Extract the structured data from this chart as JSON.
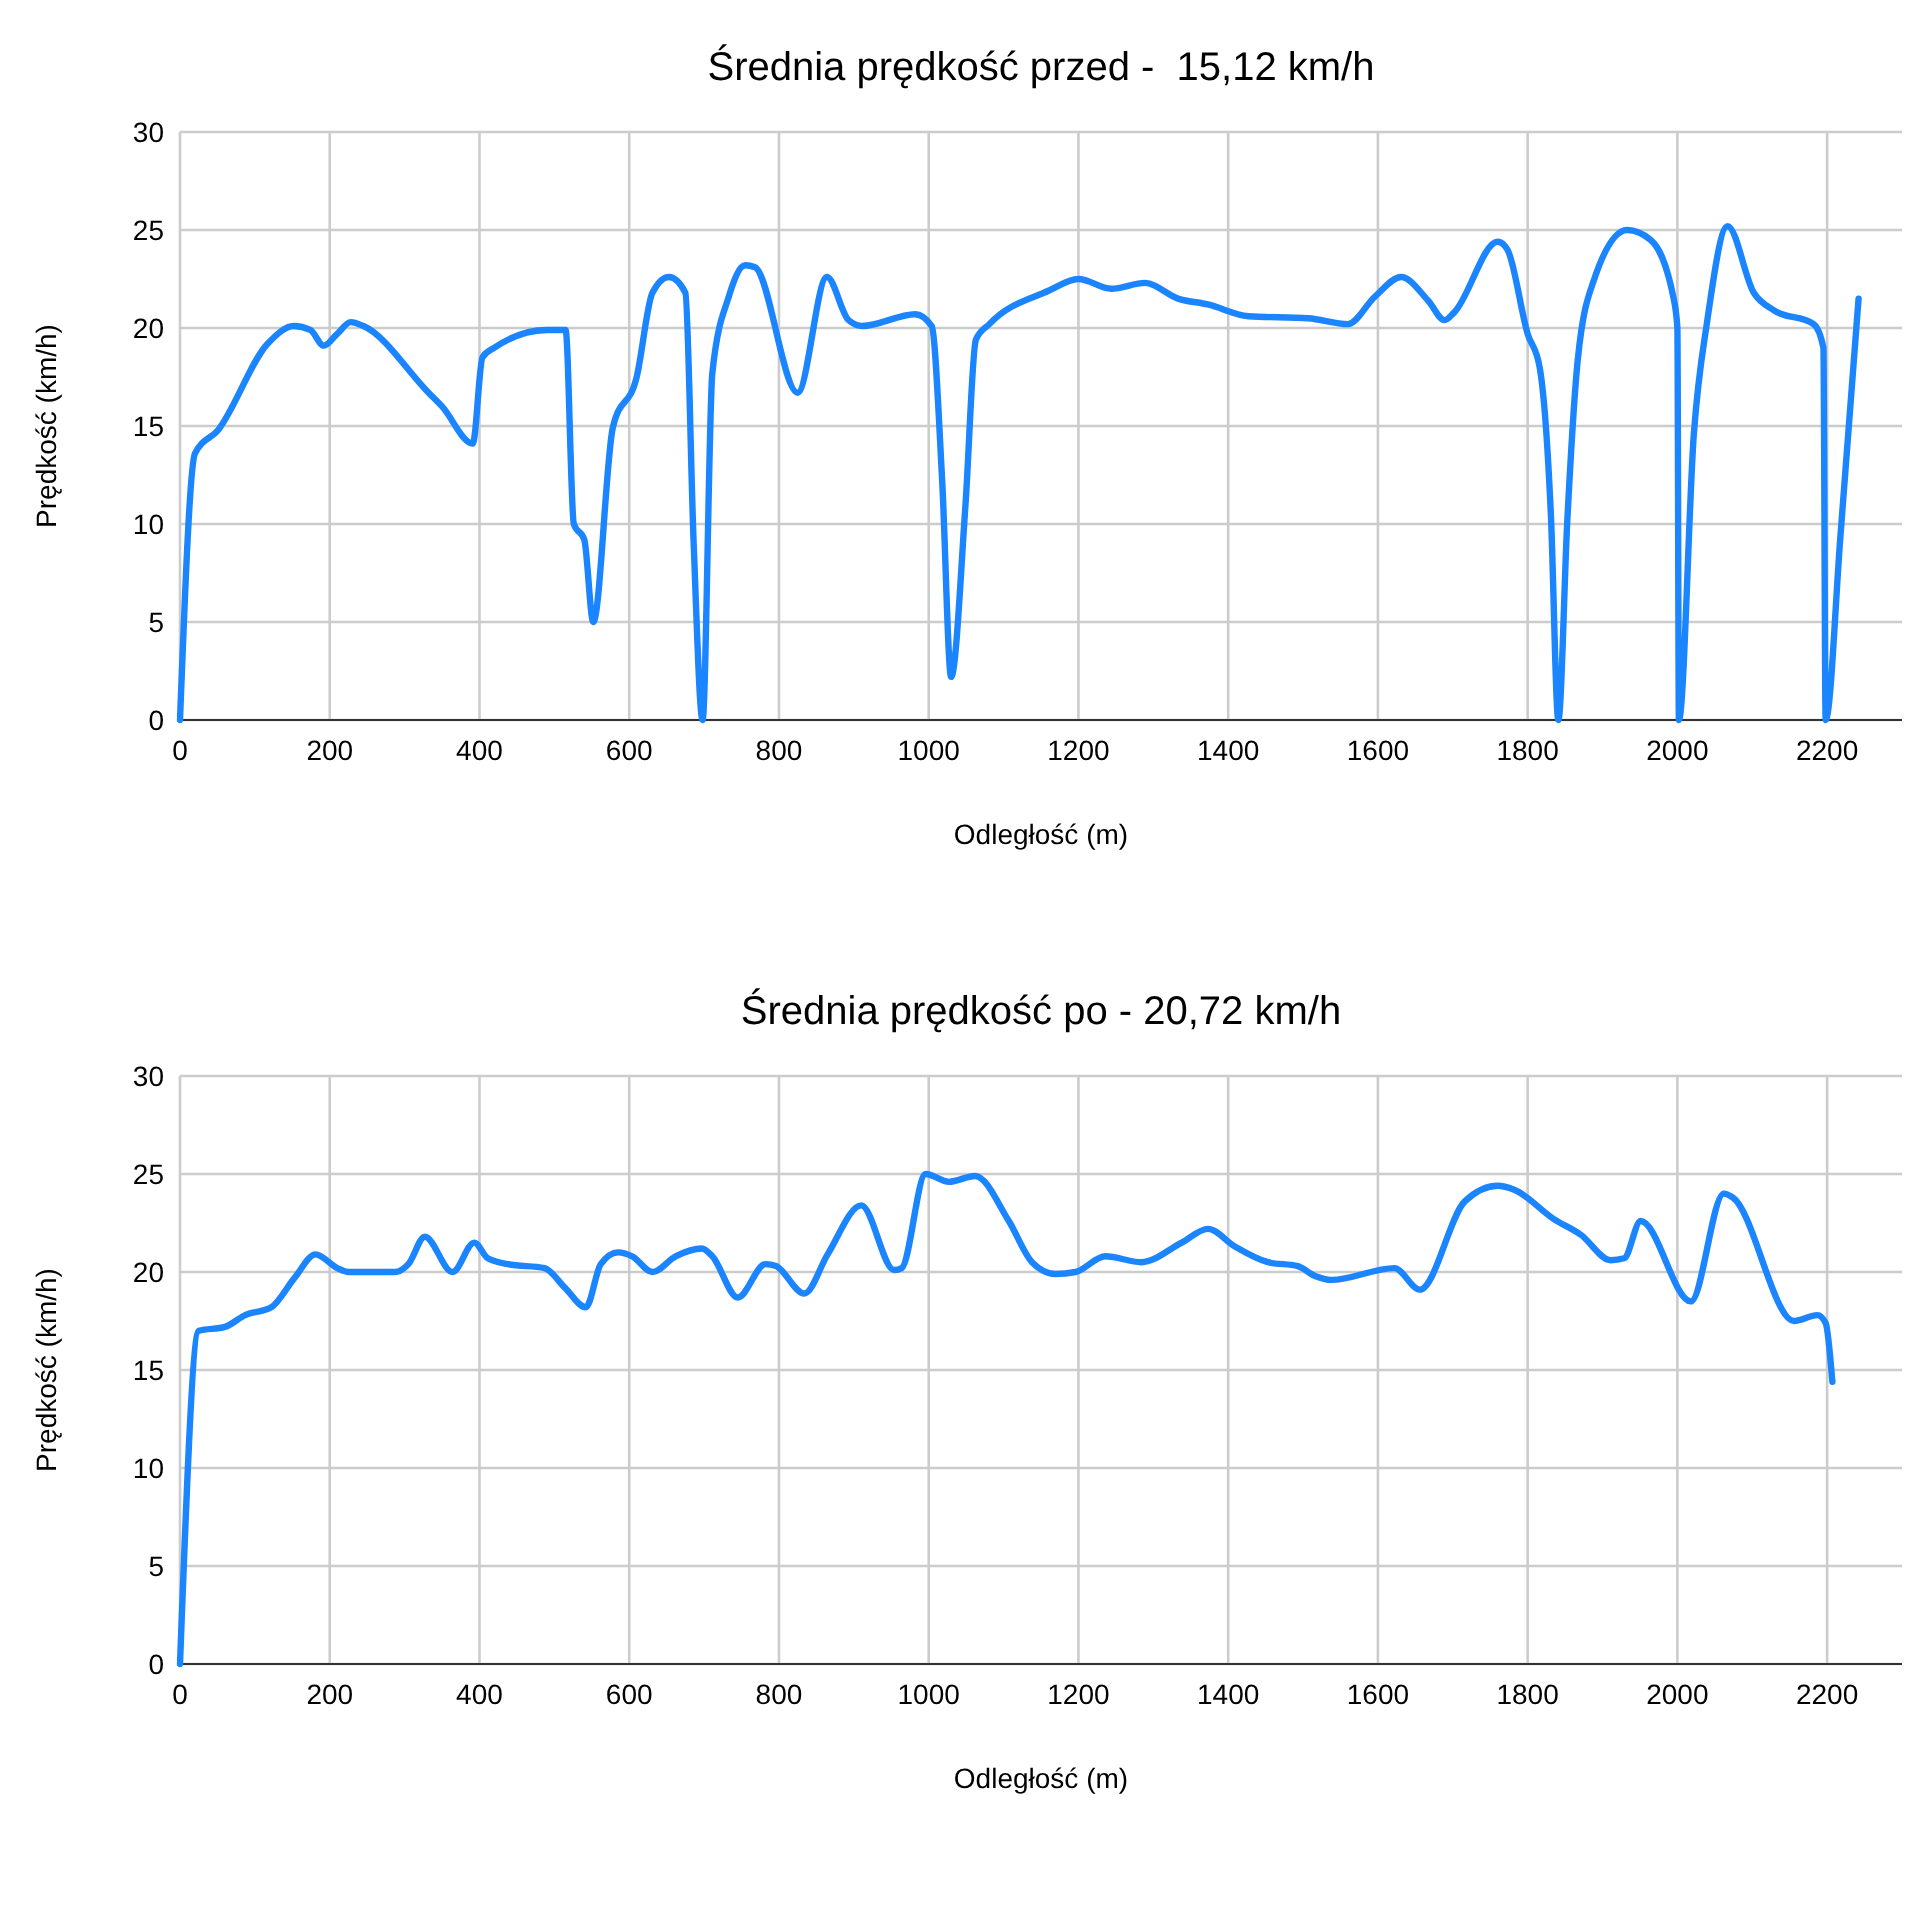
{
  "chart_data": [
    {
      "type": "line",
      "title": "Średnia prędkość przed -  15,12 km/h",
      "xlabel": "Odległość (m)",
      "ylabel": "Prędkość (km/h)",
      "xlim": [
        0,
        2300
      ],
      "xticks": [
        0,
        200,
        400,
        600,
        800,
        1000,
        1200,
        1400,
        1600,
        1800,
        2000,
        2200
      ],
      "ylim": [
        0,
        30
      ],
      "yticks": [
        0,
        5,
        10,
        15,
        20,
        25,
        30
      ],
      "grid": true,
      "marker": "none",
      "line_style": "solid",
      "series": [
        {
          "color": "#1a85ff",
          "x": [
            0,
            20,
            51,
            117,
            152,
            174,
            192,
            210,
            228,
            245,
            332,
            350,
            391,
            404,
            420,
            490,
            515,
            526,
            540,
            552,
            578,
            610,
            631,
            653,
            675,
            686,
            698,
            711,
            733,
            755,
            768,
            825,
            864,
            893,
            911,
            982,
            1004,
            1018,
            1030,
            1049,
            1063,
            1081,
            1160,
            1200,
            1244,
            1289,
            1333,
            1373,
            1427,
            1507,
            1560,
            1596,
            1631,
            1667,
            1689,
            1702,
            1760,
            1773,
            1800,
            1816,
            1831,
            1841,
            1853,
            1867,
            1889,
            1933,
            1964,
            1995,
            2000,
            2002,
            2022,
            2040,
            2067,
            2102,
            2129,
            2182,
            2195,
            2198,
            2218,
            2242
          ],
          "values": [
            0,
            13.6,
            14.8,
            19.2,
            20.1,
            19.9,
            19.1,
            19.7,
            20.3,
            20.1,
            16.7,
            16,
            14.1,
            18.5,
            19,
            19.9,
            19.9,
            10,
            9.2,
            5,
            14.9,
            17.5,
            21.8,
            22.6,
            21.8,
            9.1,
            0,
            17.7,
            21.6,
            23.2,
            23.1,
            16.7,
            22.6,
            20.4,
            20.1,
            20.7,
            20.1,
            12.2,
            2.2,
            10.9,
            19.4,
            20.2,
            21.9,
            22.5,
            22,
            22.3,
            21.5,
            21.2,
            20.6,
            20.5,
            20.2,
            21.6,
            22.6,
            21.4,
            20.4,
            20.8,
            24.4,
            24,
            19.7,
            18,
            10.5,
            0,
            10.2,
            18.4,
            22.5,
            25,
            24.5,
            21.5,
            20,
            0,
            14.6,
            20.4,
            25.2,
            21.8,
            20.9,
            20.2,
            19,
            0,
            9.5,
            21.5
          ]
        }
      ]
    },
    {
      "type": "line",
      "title": "Średnia prędkość po - 20,72 km/h",
      "xlabel": "Odległość (m)",
      "ylabel": "Prędkość (km/h)",
      "xlim": [
        0,
        2300
      ],
      "xticks": [
        0,
        200,
        400,
        600,
        800,
        1000,
        1200,
        1400,
        1600,
        1800,
        2000,
        2200
      ],
      "ylim": [
        0,
        30
      ],
      "yticks": [
        0,
        5,
        10,
        15,
        20,
        25,
        30
      ],
      "grid": true,
      "marker": "none",
      "line_style": "solid",
      "series": [
        {
          "color": "#1a85ff",
          "x": [
            0,
            25,
            60,
            87,
            122,
            153,
            181,
            210,
            225,
            287,
            305,
            327,
            364,
            393,
            411,
            438,
            487,
            514,
            542,
            562,
            585,
            604,
            631,
            662,
            697,
            711,
            745,
            782,
            796,
            834,
            865,
            910,
            954,
            964,
            996,
            1027,
            1062,
            1107,
            1138,
            1169,
            1196,
            1236,
            1284,
            1338,
            1373,
            1409,
            1453,
            1493,
            1516,
            1538,
            1622,
            1656,
            1716,
            1760,
            1782,
            1835,
            1871,
            1911,
            1929,
            1951,
            2018,
            2062,
            2074,
            2156,
            2187,
            2198,
            2207
          ],
          "values": [
            0,
            17,
            17.2,
            17.8,
            18.2,
            19.7,
            20.9,
            20.2,
            20,
            20,
            20.4,
            21.8,
            20,
            21.5,
            20.7,
            20.4,
            20.2,
            19.2,
            18.2,
            20.4,
            21,
            20.8,
            20,
            20.8,
            21.2,
            20.8,
            18.7,
            20.4,
            20.3,
            18.9,
            20.9,
            23.4,
            20.1,
            20.2,
            25,
            24.6,
            24.9,
            22.6,
            20.5,
            19.9,
            20,
            20.8,
            20.5,
            21.5,
            22.2,
            21.3,
            20.5,
            20.3,
            19.8,
            19.6,
            20.2,
            19.1,
            23.6,
            24.4,
            24.2,
            22.7,
            21.9,
            20.6,
            20.7,
            22.6,
            18.5,
            24,
            23.8,
            17.5,
            17.8,
            17.4,
            14.4
          ]
        }
      ]
    }
  ]
}
